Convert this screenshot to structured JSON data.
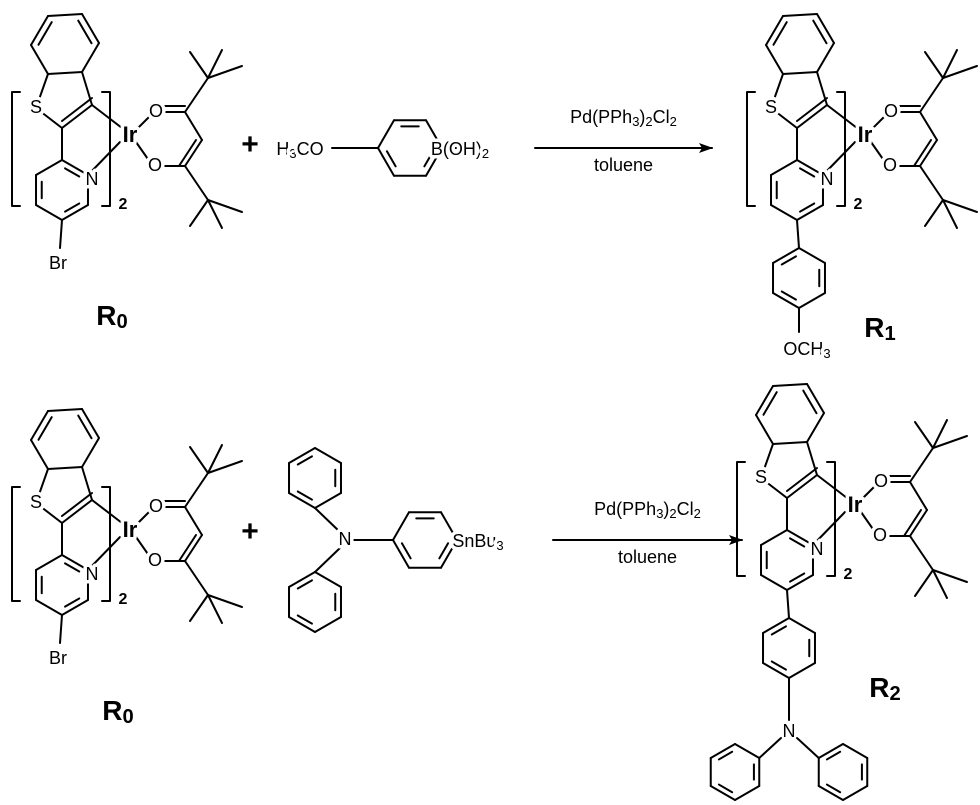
{
  "reactions": [
    {
      "reactant": {
        "label": "R0",
        "atoms": [
          "S",
          "Ir",
          "O",
          "O",
          "N",
          "Br"
        ],
        "count": "2"
      },
      "plus": "+",
      "reagent": {
        "groups": [
          "H3CO",
          "B(OH)2"
        ]
      },
      "conditions": {
        "catalyst": "Pd(PPh3)2Cl2",
        "solvent": "toluene"
      },
      "product": {
        "label": "R1",
        "atoms": [
          "S",
          "Ir",
          "O",
          "O",
          "N"
        ],
        "count": "2",
        "substituent": "OCH3"
      }
    },
    {
      "reactant": {
        "label": "R0",
        "atoms": [
          "S",
          "Ir",
          "O",
          "O",
          "N",
          "Br"
        ],
        "count": "2"
      },
      "plus": "+",
      "reagent": {
        "groups": [
          "N",
          "SnBu3"
        ]
      },
      "conditions": {
        "catalyst": "Pd(PPh3)2Cl2",
        "solvent": "toluene"
      },
      "product": {
        "label": "R2",
        "atoms": [
          "S",
          "Ir",
          "O",
          "O",
          "N"
        ],
        "count": "2",
        "substituent": "N"
      }
    }
  ]
}
